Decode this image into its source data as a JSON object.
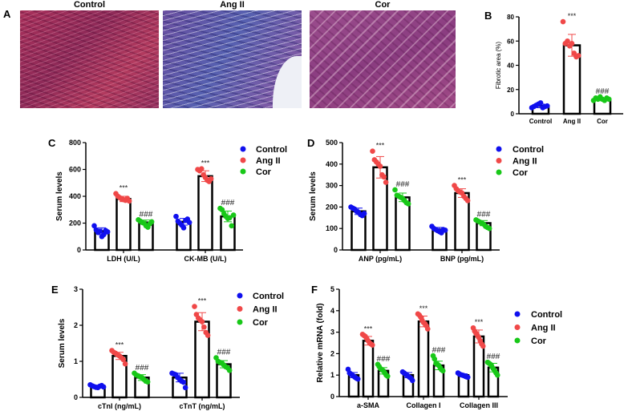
{
  "panel_a": {
    "label": "A",
    "images": [
      {
        "title": "Control"
      },
      {
        "title": "Ang II"
      },
      {
        "title": "Cor"
      }
    ]
  },
  "colors": {
    "Control": "#1010ee",
    "Ang II": "#f04848",
    "Cor": "#18c818"
  },
  "chart_data": [
    {
      "panel": "B",
      "type": "bar",
      "title": "",
      "ylabel": "Fibrotic area (%)",
      "xlabel": "",
      "ylim": [
        0,
        80
      ],
      "yticks": [
        0,
        20,
        40,
        60,
        80
      ],
      "legend": "none",
      "categories": [
        "Control",
        "Ang II",
        "Cor"
      ],
      "groups": [
        "Control",
        "Ang II",
        "Cor"
      ],
      "series": [
        {
          "name": "Fibrotic area",
          "values": [
            6.5,
            56.5,
            12
          ],
          "errors": [
            1.5,
            9,
            1.2
          ],
          "points": [
            [
              5,
              6,
              7,
              8,
              9,
              5,
              6,
              6.5
            ],
            [
              76,
              58,
              60,
              56,
              58,
              50,
              47,
              48
            ],
            [
              11,
              13,
              12,
              14,
              12,
              11,
              13,
              12
            ]
          ],
          "annotations": [
            "",
            "***",
            "###"
          ]
        }
      ]
    },
    {
      "panel": "C",
      "type": "bar",
      "ylabel": "Serum levels",
      "ylim": [
        0,
        800
      ],
      "yticks": [
        0,
        200,
        400,
        600,
        800
      ],
      "legend": "right",
      "categories": [
        "LDH (U/L)",
        "CK-MB (U/L)"
      ],
      "legend_entries": [
        "Control",
        "Ang II",
        "Cor"
      ],
      "series": [
        {
          "name": "Control",
          "values": [
            140,
            210
          ],
          "errors": [
            25,
            25
          ],
          "points": [
            [
              180,
              150,
              130,
              140,
              100,
              115,
              145,
              135
            ],
            [
              250,
              215,
              200,
              185,
              165,
              220,
              230,
              205
            ]
          ],
          "annotations": [
            "",
            ""
          ]
        },
        {
          "name": "Ang II",
          "values": [
            380,
            550
          ],
          "errors": [
            20,
            40
          ],
          "points": [
            [
              420,
              400,
              390,
              380,
              375,
              370,
              385,
              365
            ],
            [
              600,
              590,
              605,
              560,
              540,
              520,
              510,
              530
            ]
          ],
          "annotations": [
            "***",
            "***"
          ]
        },
        {
          "name": "Cor",
          "values": [
            205,
            250
          ],
          "errors": [
            18,
            40
          ],
          "points": [
            [
              225,
              215,
              205,
              200,
              180,
              170,
              195,
              210
            ],
            [
              310,
              300,
              270,
              250,
              235,
              240,
              180,
              260
            ]
          ],
          "annotations": [
            "###",
            "###"
          ]
        }
      ]
    },
    {
      "panel": "D",
      "type": "bar",
      "ylabel": "Serum levels",
      "ylim": [
        0,
        500
      ],
      "yticks": [
        0,
        100,
        200,
        300,
        400,
        500
      ],
      "legend": "right",
      "categories": [
        "ANP (pg/mL)",
        "BNP (pg/mL)"
      ],
      "legend_entries": [
        "Control",
        "Ang II",
        "Cor"
      ],
      "series": [
        {
          "name": "Control",
          "values": [
            180,
            95
          ],
          "errors": [
            15,
            10
          ],
          "points": [
            [
              200,
              195,
              190,
              180,
              175,
              165,
              160,
              170
            ],
            [
              110,
              100,
              95,
              90,
              85,
              80,
              95,
              92
            ]
          ],
          "annotations": [
            "",
            ""
          ]
        },
        {
          "name": "Ang II",
          "values": [
            385,
            265
          ],
          "errors": [
            50,
            20
          ],
          "points": [
            [
              460,
              420,
              410,
              400,
              390,
              350,
              340,
              315
            ],
            [
              300,
              285,
              275,
              270,
              265,
              250,
              240,
              230
            ]
          ],
          "annotations": [
            "***",
            "***"
          ]
        },
        {
          "name": "Cor",
          "values": [
            245,
            125
          ],
          "errors": [
            20,
            12
          ],
          "points": [
            [
              280,
              255,
              250,
              245,
              240,
              230,
              220,
              215
            ],
            [
              140,
              135,
              130,
              125,
              120,
              110,
              105,
              100
            ]
          ],
          "annotations": [
            "###",
            "###"
          ]
        }
      ]
    },
    {
      "panel": "E",
      "type": "bar",
      "ylabel": "Serum levels",
      "ylim": [
        0,
        3
      ],
      "yticks": [
        0,
        1,
        2,
        3
      ],
      "legend": "right",
      "categories": [
        "cTnI (ng/mL)",
        "cTnT (ng/mL)"
      ],
      "legend_entries": [
        "Control",
        "Ang II",
        "Cor"
      ],
      "series": [
        {
          "name": "Control",
          "values": [
            0.3,
            0.55
          ],
          "errors": [
            0.04,
            0.12
          ],
          "points": [
            [
              0.35,
              0.32,
              0.3,
              0.28,
              0.27,
              0.31,
              0.33,
              0.29
            ],
            [
              0.67,
              0.65,
              0.63,
              0.55,
              0.5,
              0.45,
              0.42,
              0.27
            ]
          ],
          "annotations": [
            "",
            ""
          ]
        },
        {
          "name": "Ang II",
          "values": [
            1.15,
            2.1
          ],
          "errors": [
            0.1,
            0.25
          ],
          "points": [
            [
              1.3,
              1.25,
              1.22,
              1.18,
              1.15,
              1.1,
              1.05,
              0.93
            ],
            [
              2.52,
              2.3,
              2.2,
              2.15,
              2.1,
              1.95,
              1.8,
              1.72
            ]
          ],
          "annotations": [
            "***",
            "***"
          ]
        },
        {
          "name": "Cor",
          "values": [
            0.55,
            0.92
          ],
          "errors": [
            0.08,
            0.1
          ],
          "points": [
            [
              0.67,
              0.62,
              0.6,
              0.57,
              0.55,
              0.5,
              0.45,
              0.43
            ],
            [
              1.1,
              1.0,
              0.97,
              0.95,
              0.9,
              0.85,
              0.82,
              0.75
            ]
          ],
          "annotations": [
            "###",
            "###"
          ]
        }
      ]
    },
    {
      "panel": "F",
      "type": "bar",
      "ylabel": "Relative mRNA (fold)",
      "ylim": [
        0,
        5
      ],
      "yticks": [
        0,
        1,
        2,
        3,
        4,
        5
      ],
      "legend": "right",
      "categories": [
        "a-SMA",
        "Collagen I",
        "Collagen III"
      ],
      "legend_entries": [
        "Control",
        "Ang II",
        "Cor"
      ],
      "series": [
        {
          "name": "Control",
          "values": [
            1.0,
            1.0,
            1.0
          ],
          "errors": [
            0.12,
            0.12,
            0.06
          ],
          "points": [
            [
              1.27,
              1.1,
              1.05,
              1.0,
              0.95,
              0.9,
              0.85,
              0.82
            ],
            [
              1.15,
              1.1,
              1.05,
              1.0,
              0.95,
              0.9,
              0.85,
              0.75
            ],
            [
              1.1,
              1.05,
              1.02,
              1.0,
              0.98,
              0.95,
              0.92,
              0.9
            ]
          ],
          "annotations": [
            "",
            "",
            ""
          ]
        },
        {
          "name": "Ang II",
          "values": [
            2.6,
            3.5,
            2.8
          ],
          "errors": [
            0.2,
            0.25,
            0.3
          ],
          "points": [
            [
              2.9,
              2.85,
              2.8,
              2.7,
              2.6,
              2.5,
              2.45,
              2.4
            ],
            [
              3.85,
              3.8,
              3.7,
              3.55,
              3.45,
              3.4,
              3.3,
              3.15
            ],
            [
              3.2,
              3.05,
              2.95,
              2.85,
              2.75,
              2.6,
              2.45,
              2.35
            ]
          ],
          "annotations": [
            "***",
            "***",
            "***"
          ]
        },
        {
          "name": "Cor",
          "values": [
            1.2,
            1.45,
            1.35
          ],
          "errors": [
            0.15,
            0.2,
            0.2
          ],
          "points": [
            [
              1.5,
              1.4,
              1.3,
              1.25,
              1.2,
              1.1,
              1.0,
              0.95
            ],
            [
              1.9,
              1.75,
              1.55,
              1.5,
              1.45,
              1.35,
              1.25,
              1.2
            ],
            [
              1.6,
              1.55,
              1.5,
              1.4,
              1.3,
              1.2,
              1.1,
              1.0
            ]
          ],
          "annotations": [
            "###",
            "###",
            "###"
          ]
        }
      ]
    }
  ]
}
